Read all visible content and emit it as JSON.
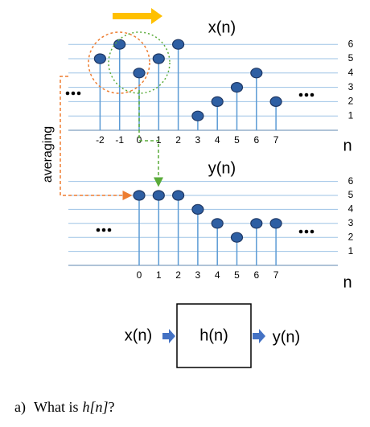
{
  "top_plot": {
    "title": "x(n)",
    "axis_label": "n",
    "n": [
      -2,
      -1,
      0,
      1,
      2,
      3,
      4,
      5,
      6,
      7
    ],
    "values": [
      5,
      6,
      4,
      5,
      6,
      1,
      2,
      3,
      4,
      2
    ],
    "yticks": [
      1,
      2,
      3,
      4,
      5,
      6
    ]
  },
  "side_label": "averaging",
  "bottom_plot": {
    "title": "y(n)",
    "axis_label": "n",
    "n": [
      0,
      1,
      2,
      3,
      4,
      5,
      6,
      7
    ],
    "values": [
      5,
      5,
      5,
      4,
      3,
      2,
      3,
      3
    ],
    "yticks": [
      1,
      2,
      3,
      4,
      5,
      6
    ]
  },
  "block": {
    "input": "x(n)",
    "system": "h(n)",
    "output": "y(n)"
  },
  "question": {
    "label": "a)",
    "text": "What is",
    "math": "h[n]",
    "end": "?"
  }
}
